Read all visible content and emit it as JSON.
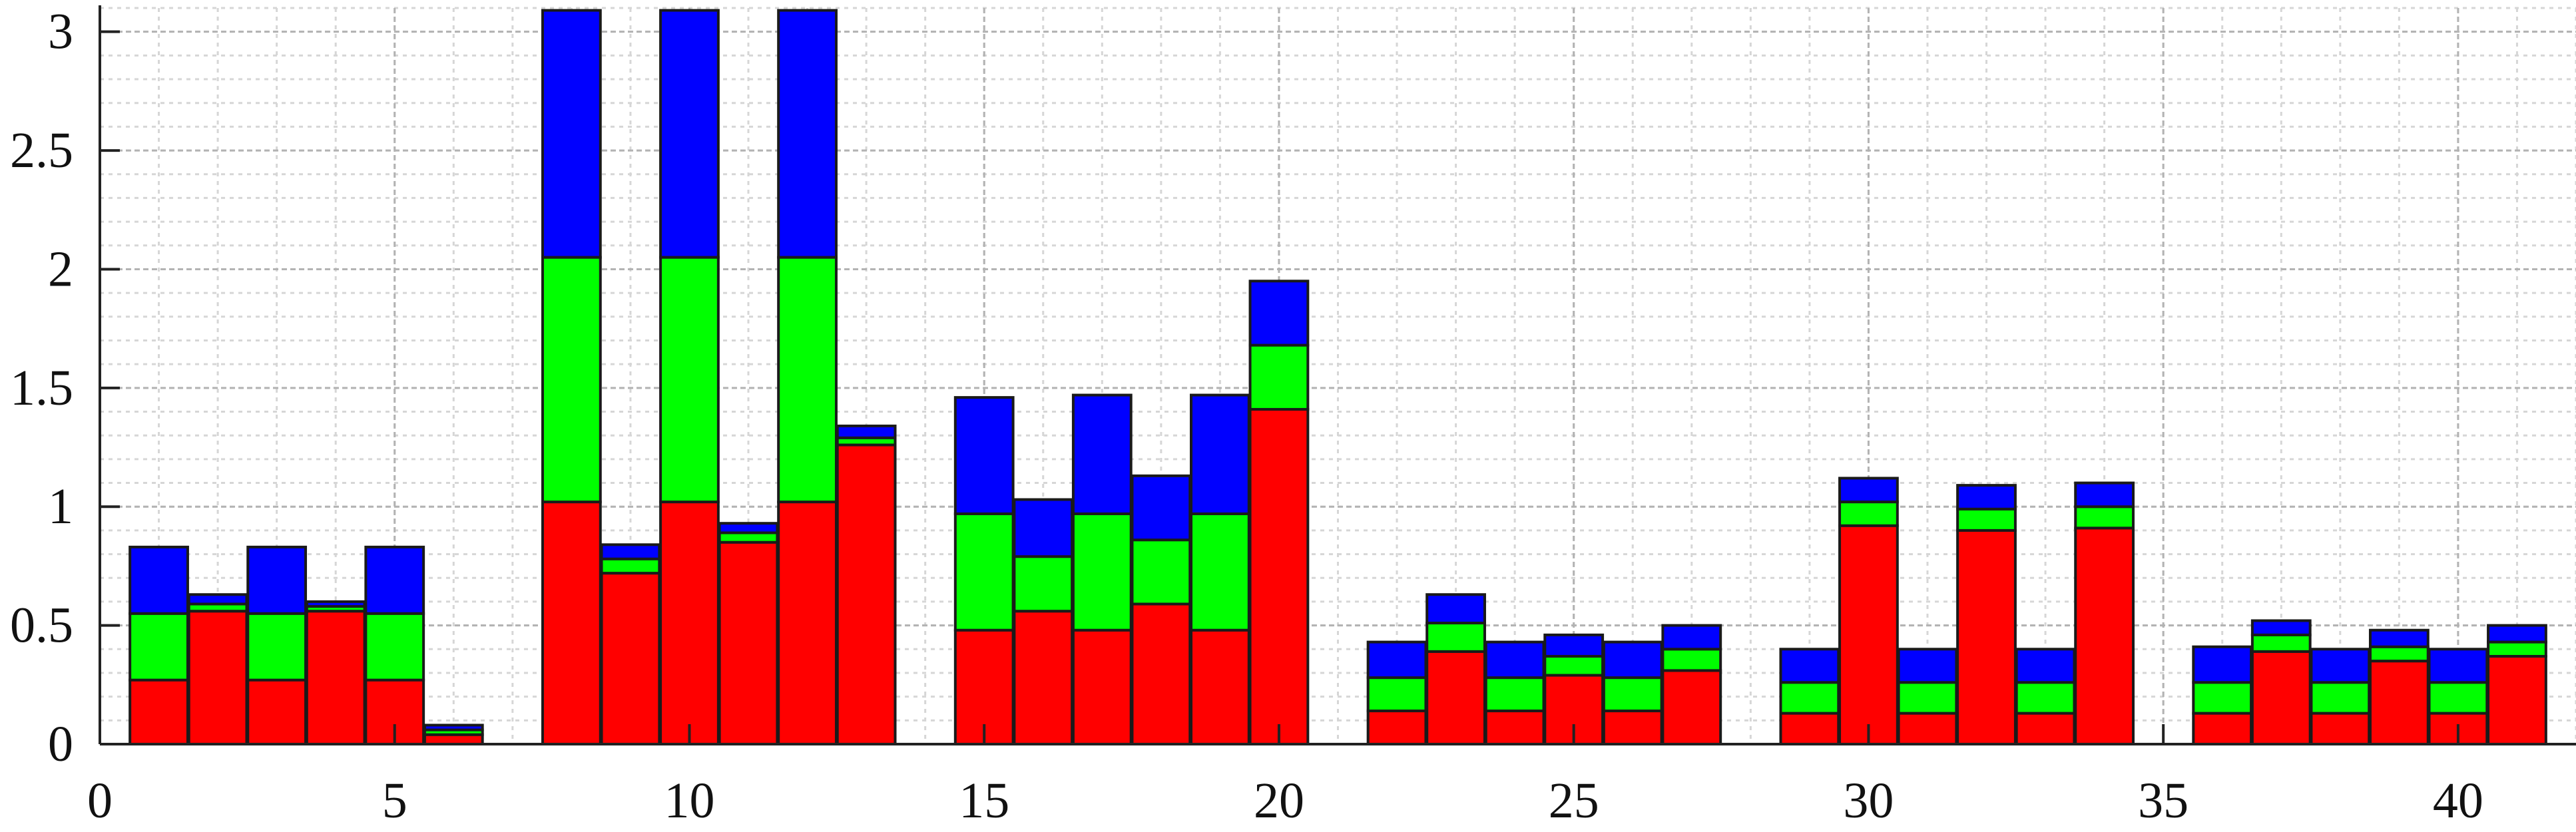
{
  "chart_data": {
    "type": "bar",
    "stacked": true,
    "title": "",
    "xlabel": "",
    "ylabel": "",
    "xlim": [
      0,
      42
    ],
    "ylim": [
      0,
      3.1
    ],
    "grid": true,
    "x_ticks": [
      0,
      5,
      10,
      15,
      20,
      25,
      30,
      35,
      40
    ],
    "y_ticks": [
      0,
      0.5,
      1,
      1.5,
      2,
      2.5,
      3
    ],
    "x_tick_labels": [
      "0",
      "5",
      "10",
      "15",
      "20",
      "25",
      "30",
      "35",
      "40"
    ],
    "y_tick_labels": [
      "0",
      "0.5",
      "1",
      "1.5",
      "2",
      "2.5",
      "3"
    ],
    "x": [
      1,
      2,
      3,
      4,
      5,
      6,
      8,
      9,
      10,
      11,
      12,
      13,
      15,
      16,
      17,
      18,
      19,
      20,
      22,
      23,
      24,
      25,
      26,
      27,
      29,
      30,
      31,
      32,
      33,
      34,
      36,
      37,
      38,
      39,
      40,
      41
    ],
    "series": [
      {
        "color": "#ff0000",
        "values": [
          0.27,
          0.56,
          0.27,
          0.56,
          0.27,
          0.04,
          1.02,
          0.72,
          1.02,
          0.85,
          1.02,
          1.26,
          0.48,
          0.56,
          0.48,
          0.59,
          0.48,
          1.41,
          0.14,
          0.39,
          0.14,
          0.29,
          0.14,
          0.31,
          0.13,
          0.92,
          0.13,
          0.9,
          0.13,
          0.91,
          0.13,
          0.39,
          0.13,
          0.35,
          0.13,
          0.37
        ]
      },
      {
        "color": "#00ff00",
        "values": [
          0.28,
          0.03,
          0.28,
          0.02,
          0.28,
          0.02,
          1.03,
          0.06,
          1.03,
          0.04,
          1.03,
          0.03,
          0.49,
          0.23,
          0.49,
          0.27,
          0.49,
          0.27,
          0.14,
          0.12,
          0.14,
          0.08,
          0.14,
          0.09,
          0.13,
          0.1,
          0.13,
          0.09,
          0.13,
          0.09,
          0.13,
          0.07,
          0.13,
          0.06,
          0.13,
          0.06
        ]
      },
      {
        "color": "#0000ff",
        "values": [
          0.28,
          0.04,
          0.28,
          0.02,
          0.28,
          0.02,
          1.04,
          0.06,
          1.04,
          0.04,
          1.04,
          0.05,
          0.49,
          0.24,
          0.5,
          0.27,
          0.5,
          0.27,
          0.15,
          0.12,
          0.15,
          0.09,
          0.15,
          0.1,
          0.14,
          0.1,
          0.14,
          0.1,
          0.14,
          0.1,
          0.15,
          0.06,
          0.14,
          0.07,
          0.14,
          0.07
        ]
      }
    ]
  }
}
